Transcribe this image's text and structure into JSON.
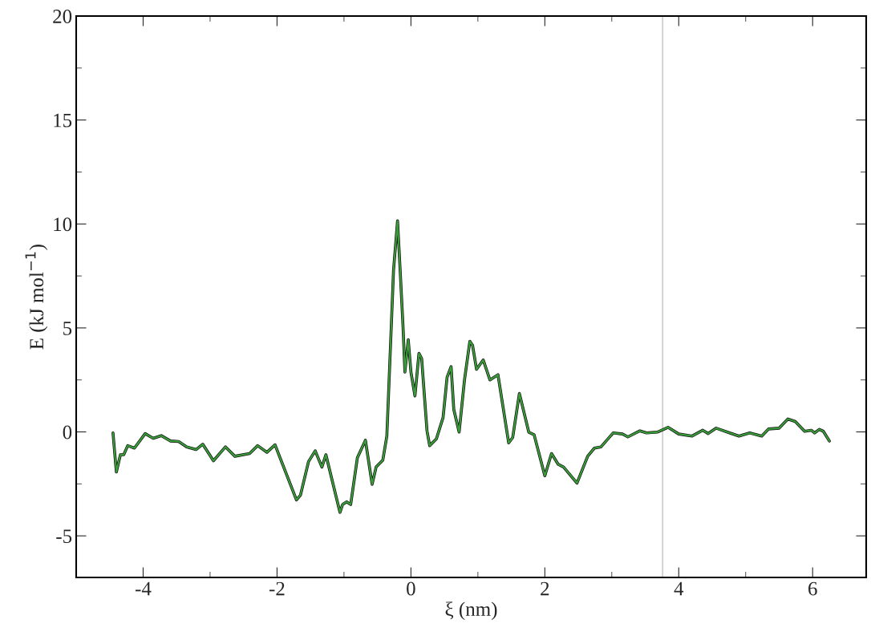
{
  "chart_data": {
    "type": "line",
    "xlabel": "ξ (nm)",
    "ylabel": "E (kJ mol$^{−1}$)",
    "xlim": [
      -5,
      6.8
    ],
    "ylim": [
      -7,
      20
    ],
    "xticks": [
      -4,
      -2,
      0,
      2,
      4,
      6
    ],
    "yticks": [
      -5,
      0,
      5,
      10,
      15,
      20
    ],
    "grid": false,
    "legend": false,
    "marker": "none",
    "line_style": "solid",
    "ref_lines": [
      {
        "axis": "x",
        "value": 3.76,
        "color": "#cccccc"
      }
    ],
    "series": [
      {
        "color": "#3a9a3a",
        "x": [
          -4.45,
          -4.4,
          -4.34,
          -4.29,
          -4.23,
          -4.13,
          -3.97,
          -3.85,
          -3.73,
          -3.59,
          -3.47,
          -3.35,
          -3.21,
          -3.11,
          -2.95,
          -2.77,
          -2.63,
          -2.41,
          -2.29,
          -2.15,
          -2.03,
          -1.71,
          -1.65,
          -1.53,
          -1.43,
          -1.33,
          -1.27,
          -1.06,
          -1.02,
          -0.96,
          -0.9,
          -0.8,
          -0.68,
          -0.58,
          -0.52,
          -0.42,
          -0.36,
          -0.3,
          -0.26,
          -0.2,
          -0.16,
          -0.12,
          -0.09,
          -0.04,
          0.0,
          0.06,
          0.12,
          0.16,
          0.24,
          0.28,
          0.38,
          0.48,
          0.54,
          0.6,
          0.64,
          0.72,
          0.8,
          0.88,
          0.92,
          0.98,
          1.08,
          1.18,
          1.3,
          1.46,
          1.52,
          1.62,
          1.76,
          1.84,
          2.0,
          2.1,
          2.2,
          2.28,
          2.48,
          2.64,
          2.74,
          2.84,
          3.02,
          3.16,
          3.24,
          3.42,
          3.52,
          3.68,
          3.84,
          4.0,
          4.2,
          4.36,
          4.44,
          4.56,
          4.76,
          4.9,
          5.06,
          5.24,
          5.34,
          5.5,
          5.63,
          5.74,
          5.88,
          5.98,
          6.03,
          6.1,
          6.16,
          6.25
        ],
        "values": [
          -0.05,
          -1.93,
          -1.1,
          -1.1,
          -0.66,
          -0.78,
          -0.08,
          -0.31,
          -0.18,
          -0.44,
          -0.46,
          -0.72,
          -0.85,
          -0.59,
          -1.39,
          -0.72,
          -1.17,
          -1.04,
          -0.66,
          -0.98,
          -0.62,
          -3.27,
          -3.04,
          -1.43,
          -0.91,
          -1.69,
          -1.1,
          -3.87,
          -3.49,
          -3.36,
          -3.49,
          -1.24,
          -0.4,
          -2.52,
          -1.69,
          -1.36,
          -0.2,
          4.56,
          7.77,
          10.15,
          7.71,
          5.2,
          2.88,
          4.43,
          2.88,
          1.73,
          3.78,
          3.53,
          0.05,
          -0.66,
          -0.34,
          0.69,
          2.63,
          3.14,
          1.08,
          -0.01,
          2.5,
          4.36,
          4.17,
          3.01,
          3.46,
          2.5,
          2.75,
          -0.53,
          -0.27,
          1.85,
          -0.01,
          -0.14,
          -2.11,
          -1.04,
          -1.56,
          -1.69,
          -2.46,
          -1.17,
          -0.78,
          -0.72,
          -0.05,
          -0.1,
          -0.24,
          0.05,
          -0.05,
          -0.01,
          0.22,
          -0.1,
          -0.2,
          0.08,
          -0.08,
          0.18,
          -0.05,
          -0.2,
          -0.05,
          -0.2,
          0.14,
          0.18,
          0.62,
          0.5,
          0.03,
          0.08,
          -0.05,
          0.12,
          0.03,
          -0.44
        ]
      }
    ]
  }
}
